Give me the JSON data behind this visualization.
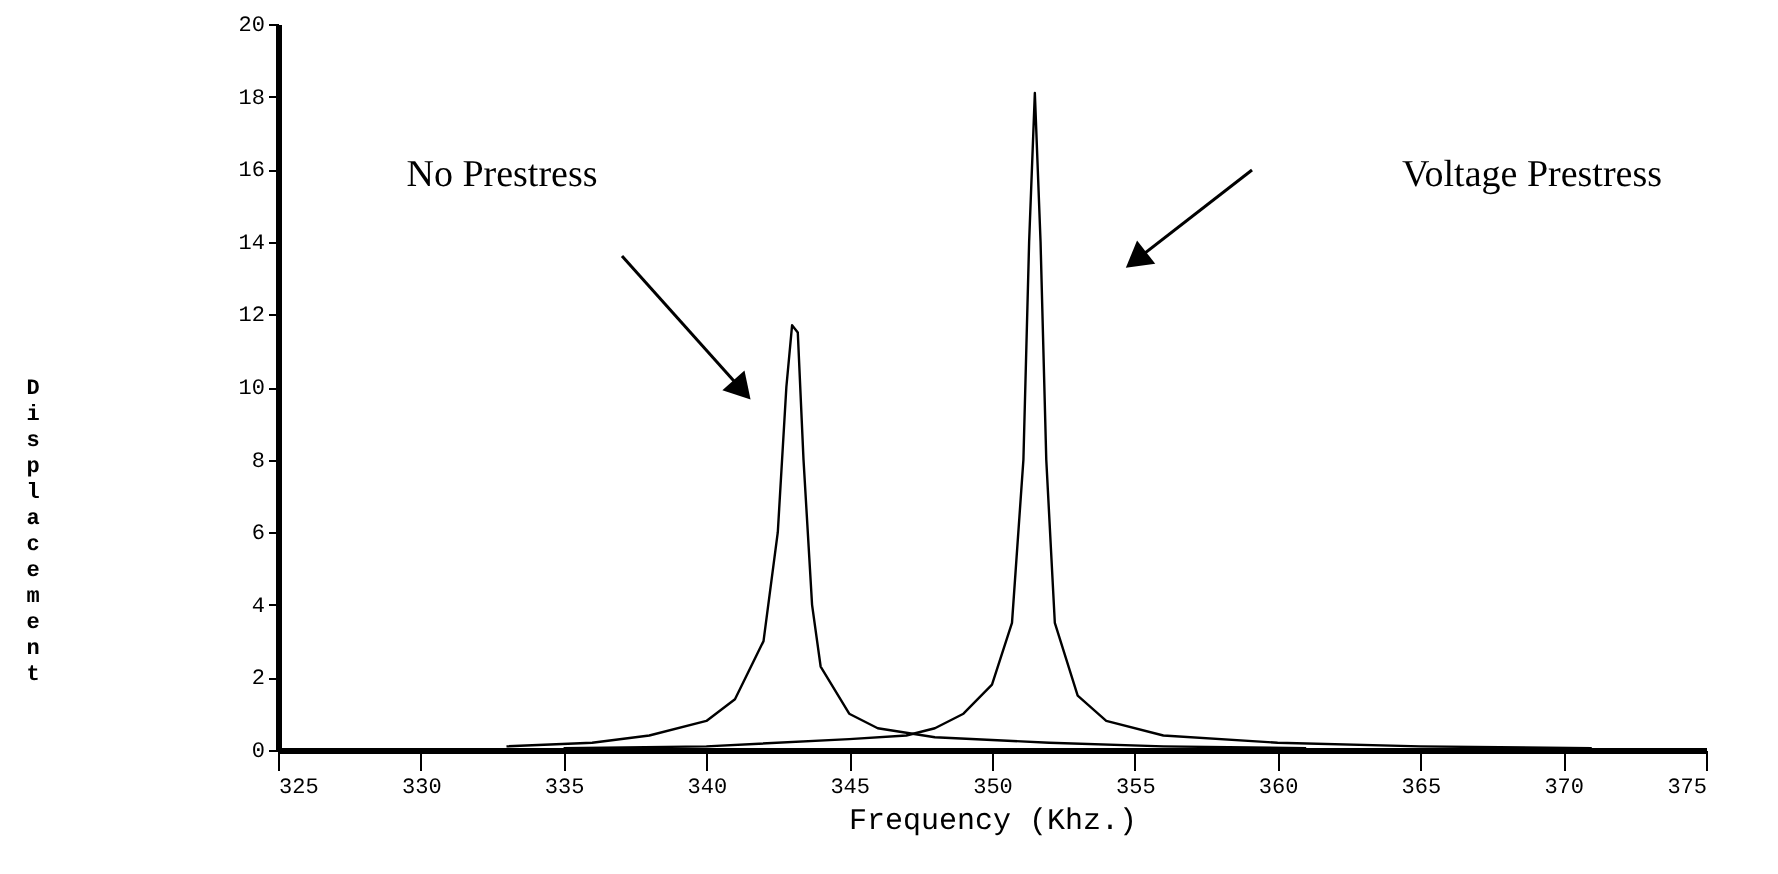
{
  "chart_data": {
    "type": "line",
    "xlabel": "Frequency (Khz.)",
    "ylabel": "Displacement",
    "xlim": [
      325,
      375
    ],
    "xticks": [
      325,
      330,
      335,
      340,
      345,
      350,
      355,
      360,
      365,
      370,
      375
    ],
    "ylim": [
      0,
      20
    ],
    "yticks": [
      0,
      2,
      4,
      6,
      8,
      10,
      12,
      14,
      16,
      18,
      20
    ],
    "marker": "none",
    "line_style": "solid",
    "series": [
      {
        "color": "#000000",
        "x": [
          333,
          336,
          338,
          340,
          341,
          342,
          342.5,
          342.8,
          343.0,
          343.2,
          343.4,
          343.7,
          344,
          345,
          346,
          348,
          352,
          356,
          361
        ],
        "values": [
          0.1,
          0.2,
          0.4,
          0.8,
          1.4,
          3,
          6,
          10,
          11.7,
          11.5,
          8,
          4,
          2.3,
          1,
          0.6,
          0.35,
          0.2,
          0.1,
          0.05
        ]
      },
      {
        "color": "#000000",
        "x": [
          335,
          340,
          345,
          347,
          348,
          349,
          350,
          350.7,
          351.1,
          351.3,
          351.5,
          351.7,
          351.9,
          352.2,
          353,
          354,
          356,
          360,
          365,
          371
        ],
        "values": [
          0.05,
          0.1,
          0.3,
          0.4,
          0.6,
          1,
          1.8,
          3.5,
          8,
          14,
          18.1,
          14,
          8,
          3.5,
          1.5,
          0.8,
          0.4,
          0.2,
          0.1,
          0.05
        ]
      }
    ],
    "annotations": [
      "No Prestress",
      "Voltage Prestress"
    ]
  }
}
